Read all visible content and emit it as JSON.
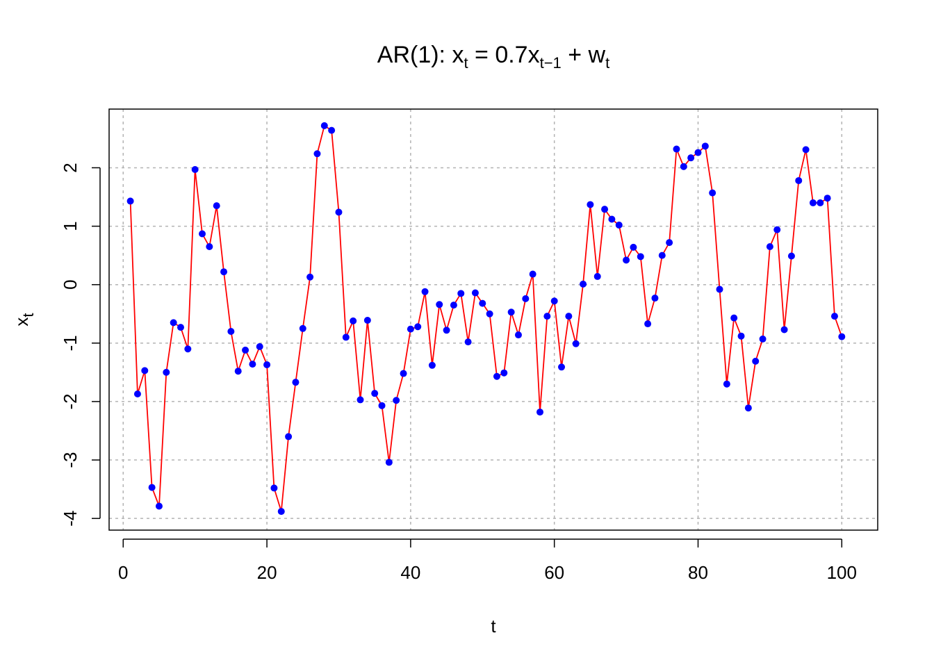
{
  "chart_data": {
    "type": "line",
    "title": {
      "prefix": "AR(1): x",
      "sub1": "t",
      "mid": " = 0.7x",
      "sub2": "t−1",
      "plus": " + w",
      "sub3": "t"
    },
    "xlabel": "t",
    "ylabel": {
      "base": "x",
      "sub": "t"
    },
    "xlim": [
      -1.96,
      105
    ],
    "ylim": [
      -4.2,
      3.004
    ],
    "xticks": [
      0,
      20,
      40,
      60,
      80,
      100
    ],
    "yticks": [
      -4,
      -3,
      -2,
      -1,
      0,
      1,
      2
    ],
    "xtick_labels": [
      "0",
      "20",
      "40",
      "60",
      "80",
      "100"
    ],
    "ytick_labels": [
      "-4",
      "-3",
      "-2",
      "-1",
      "0",
      "1",
      "2"
    ],
    "grid": true,
    "line_color": "#ff0000",
    "point_color": "#0000ff",
    "grid_color": "#b3b3b3",
    "series": [
      {
        "x": [
          1,
          2,
          3,
          4,
          5,
          6,
          7,
          8,
          9,
          10,
          11,
          12,
          13,
          14,
          15,
          16,
          17,
          18,
          19,
          20,
          21,
          22,
          23,
          24,
          25,
          26,
          27,
          28,
          29,
          30,
          31,
          32,
          33,
          34,
          35,
          36,
          37,
          38,
          39,
          40,
          41,
          42,
          43,
          44,
          45,
          46,
          47,
          48,
          49,
          50,
          51,
          52,
          53,
          54,
          55,
          56,
          57,
          58,
          59,
          60,
          61,
          62,
          63,
          64,
          65,
          66,
          67,
          68,
          69,
          70,
          71,
          72,
          73,
          74,
          75,
          76,
          77,
          78,
          79,
          80,
          81,
          82,
          83,
          84,
          85,
          86,
          87,
          88,
          89,
          90,
          91,
          92,
          93,
          94,
          95,
          96,
          97,
          98,
          99,
          100
        ],
        "values": [
          1.43,
          -1.87,
          -1.47,
          -3.47,
          -3.79,
          -1.5,
          -0.65,
          -0.73,
          -1.1,
          1.97,
          0.87,
          0.65,
          1.35,
          0.22,
          -0.8,
          -1.48,
          -1.12,
          -1.36,
          -1.06,
          -1.37,
          -3.48,
          -3.88,
          -2.6,
          -1.67,
          -0.75,
          0.13,
          2.24,
          2.72,
          2.64,
          1.24,
          -0.9,
          -0.62,
          -1.97,
          -0.61,
          -1.86,
          -2.07,
          -3.04,
          -1.98,
          -1.52,
          -0.76,
          -0.72,
          -0.12,
          -1.38,
          -0.34,
          -0.78,
          -0.35,
          -0.15,
          -0.98,
          -0.14,
          -0.32,
          -0.5,
          -1.57,
          -1.51,
          -0.47,
          -0.86,
          -0.24,
          0.18,
          -2.18,
          -0.54,
          -0.28,
          -1.41,
          -0.54,
          -1.01,
          0.01,
          1.37,
          0.14,
          1.29,
          1.12,
          1.02,
          0.42,
          0.64,
          0.48,
          -0.67,
          -0.23,
          0.5,
          0.72,
          2.32,
          2.02,
          2.17,
          2.26,
          2.37,
          1.57,
          -0.08,
          -1.7,
          -0.57,
          -0.88,
          -2.11,
          -1.31,
          -0.93,
          0.65,
          0.94,
          -0.77,
          0.49,
          1.78,
          2.31,
          1.4,
          1.4,
          1.48,
          -0.54,
          -0.89
        ]
      }
    ]
  }
}
